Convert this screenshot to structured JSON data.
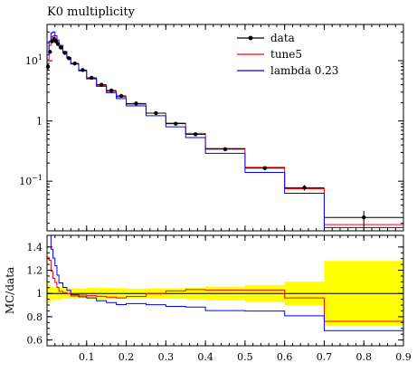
{
  "chart_data": {
    "type": "line",
    "title": "K0 multiplicity",
    "main_panel": {
      "y_scale": "log",
      "ylim": [
        0.015,
        40
      ],
      "y_ticks": [
        {
          "value": 10,
          "base": "10",
          "exp": "1"
        },
        {
          "value": 1,
          "base": "1",
          "exp": ""
        },
        {
          "value": 0.1,
          "base": "10",
          "exp": "−1"
        }
      ],
      "legend_position": "top-right"
    },
    "ratio_panel": {
      "ylabel": "MC/data",
      "ylim": [
        0.55,
        1.5
      ],
      "y_ticks": [
        "0.6",
        "0.8",
        "1",
        "1.2",
        "1.4"
      ],
      "x_ticks": [
        "0.1",
        "0.2",
        "0.3",
        "0.4",
        "0.5",
        "0.6",
        "0.7",
        "0.8",
        "0.9"
      ],
      "x_tick_values": [
        0.1,
        0.2,
        0.3,
        0.4,
        0.5,
        0.6,
        0.7,
        0.8,
        0.9
      ],
      "band_color": "#ffff00"
    },
    "xlim": [
      0,
      0.9
    ],
    "bin_edges": [
      0,
      0.005,
      0.01,
      0.015,
      0.02,
      0.025,
      0.03,
      0.04,
      0.05,
      0.06,
      0.08,
      0.1,
      0.125,
      0.15,
      0.175,
      0.2,
      0.25,
      0.3,
      0.35,
      0.4,
      0.5,
      0.6,
      0.7,
      0.9
    ],
    "series": [
      {
        "name": "data",
        "color": "#000000",
        "style": "points",
        "x": [
          0.0025,
          0.0075,
          0.0125,
          0.0175,
          0.0225,
          0.0275,
          0.035,
          0.045,
          0.055,
          0.07,
          0.09,
          0.1125,
          0.1375,
          0.1625,
          0.1875,
          0.225,
          0.275,
          0.325,
          0.375,
          0.45,
          0.55,
          0.65,
          0.8
        ],
        "values": [
          8,
          14,
          21,
          23,
          21,
          19,
          16.5,
          13.5,
          11,
          9,
          7,
          5.2,
          4,
          3.2,
          2.6,
          1.95,
          1.35,
          0.9,
          0.6,
          0.34,
          0.165,
          0.078,
          0.025
        ],
        "errors": [
          0.8,
          1.0,
          1.2,
          1.2,
          1.1,
          1.0,
          0.8,
          0.6,
          0.5,
          0.4,
          0.3,
          0.25,
          0.2,
          0.15,
          0.12,
          0.08,
          0.06,
          0.04,
          0.03,
          0.02,
          0.012,
          0.008,
          0.007
        ]
      },
      {
        "name": "tune5",
        "color": "#ff0000",
        "style": "step",
        "values": [
          10.5,
          18,
          25,
          26,
          23,
          20,
          16.8,
          13.6,
          11,
          8.8,
          6.9,
          5.1,
          3.9,
          3.1,
          2.5,
          1.9,
          1.35,
          0.92,
          0.62,
          0.35,
          0.17,
          0.075,
          0.019
        ]
      },
      {
        "name": "lambda 0.23",
        "color": "#0000ff",
        "style": "step",
        "values": [
          12.5,
          21,
          29,
          30,
          26,
          22,
          18,
          14.2,
          11.3,
          8.9,
          6.8,
          5.0,
          3.75,
          2.95,
          2.35,
          1.78,
          1.22,
          0.8,
          0.53,
          0.29,
          0.14,
          0.063,
          0.017
        ]
      }
    ]
  }
}
